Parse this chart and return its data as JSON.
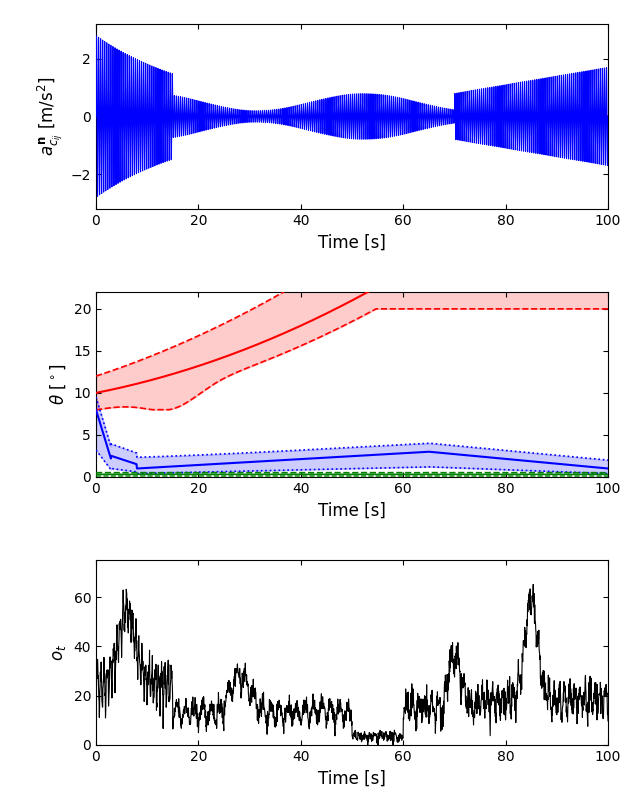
{
  "fig_width": 6.4,
  "fig_height": 8.01,
  "dpi": 100,
  "subplot1": {
    "ylabel": "$a^{\\mathbf{n}}_{c_{ij}}$ [m/s$^2$]",
    "xlabel": "Time [s]",
    "xlim": [
      0,
      100
    ],
    "ylim": [
      -3.2,
      3.2
    ],
    "yticks": [
      -2,
      0,
      2
    ],
    "xticks": [
      0,
      20,
      40,
      60,
      80,
      100
    ],
    "blue_color": "#0000FF",
    "red_color": "#FF0000"
  },
  "subplot2": {
    "ylabel": "$\\theta$ [$^\\circ$]",
    "xlabel": "Time [s]",
    "xlim": [
      0,
      100
    ],
    "ylim": [
      0,
      22
    ],
    "yticks": [
      0,
      5,
      10,
      15,
      20
    ],
    "xticks": [
      0,
      20,
      40,
      60,
      80,
      100
    ],
    "red_color": "#FF0000",
    "blue_color": "#0000FF",
    "green_color": "#008000",
    "red_fill_alpha": 0.2,
    "blue_fill_alpha": 0.2,
    "green_fill_alpha": 0.2
  },
  "subplot3": {
    "ylabel": "$o_t$",
    "xlabel": "Time [s]",
    "xlim": [
      0,
      100
    ],
    "ylim": [
      0,
      75
    ],
    "yticks": [
      0,
      20,
      40,
      60
    ],
    "xticks": [
      0,
      20,
      40,
      60,
      80,
      100
    ],
    "black_color": "#000000"
  }
}
